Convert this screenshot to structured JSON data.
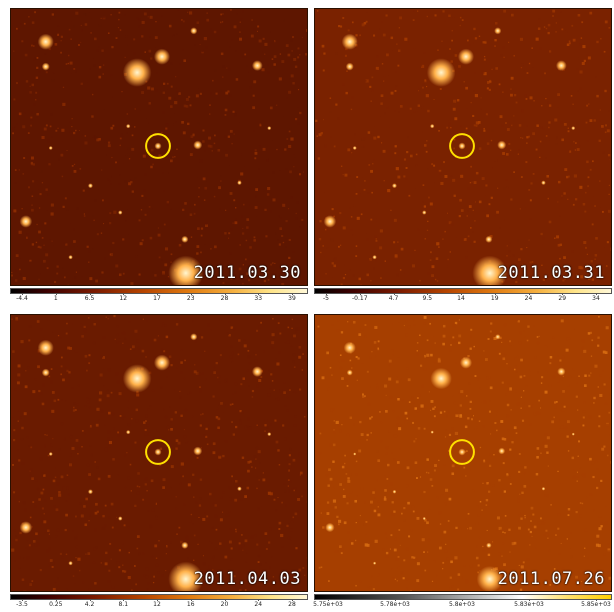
{
  "colors": {
    "bg_a": "#6b1a00",
    "bg_b": "#8a2c00",
    "star": "#fff6d0",
    "glow": "#ffb14a",
    "circle": "#ffe000"
  },
  "panels": [
    {
      "date": "2011.03.30",
      "ticks": [
        "-4.4",
        "1",
        "6.5",
        "12",
        "17",
        "23",
        "28",
        "33",
        "39"
      ],
      "cmap": "afmhot",
      "bg": [
        "#5e1600",
        "#8a2b00"
      ]
    },
    {
      "date": "2011.03.31",
      "ticks": [
        "-5",
        "-0.17",
        "4.7",
        "9.5",
        "14",
        "19",
        "24",
        "29",
        "34"
      ],
      "cmap": "afmhot",
      "bg": [
        "#7a2200",
        "#a63c00"
      ]
    },
    {
      "date": "2011.04.03",
      "ticks": [
        "-3.5",
        "0.25",
        "4.2",
        "8.1",
        "12",
        "16",
        "20",
        "24",
        "28"
      ],
      "cmap": "afmhot",
      "bg": [
        "#6a1b00",
        "#973300"
      ]
    },
    {
      "date": "2011.07.26",
      "ticks": [
        "5.75e+03",
        "5.78e+03",
        "5.8e+03",
        "5.83e+03",
        "5.85e+03"
      ],
      "cmap": "grey-to-yellow",
      "bg": [
        "#a63f00",
        "#d56a10"
      ]
    }
  ]
}
